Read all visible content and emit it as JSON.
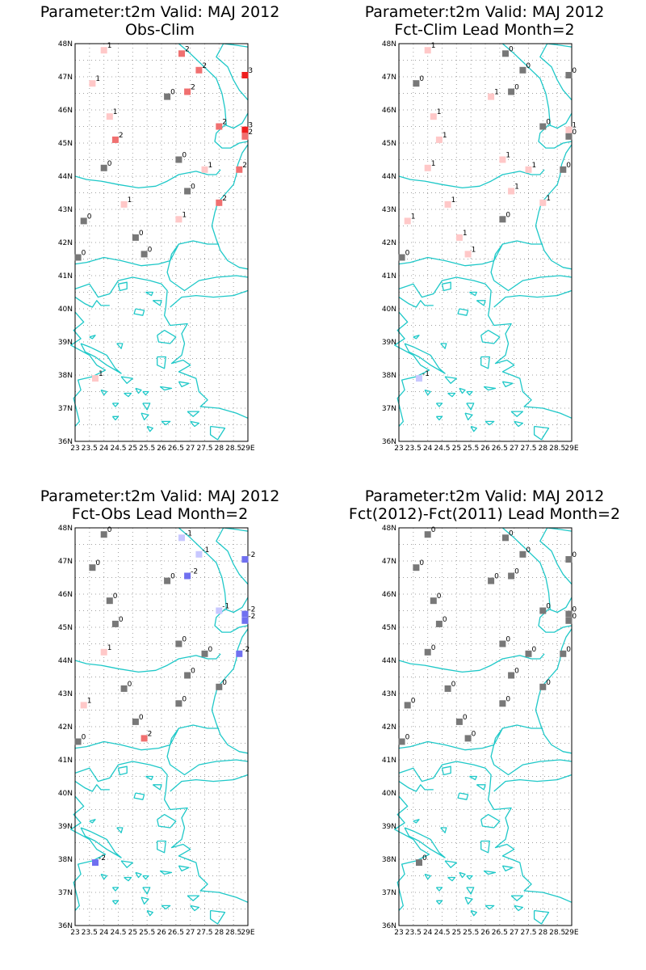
{
  "colors": {
    "coast": "#1ec8c8",
    "grey": "#787878",
    "pos1": "#ffc8c8",
    "pos2": "#f07070",
    "pos3": "#ee1e1e",
    "neg1": "#c8c8ff",
    "neg2": "#7070f0"
  },
  "axes": {
    "lat_labels": [
      "48N",
      "47N",
      "46N",
      "45N",
      "44N",
      "43N",
      "42N",
      "41N",
      "40N",
      "39N",
      "38N",
      "37N",
      "36N"
    ],
    "lon_labels": [
      "23",
      "23.5",
      "24",
      "24.5",
      "25",
      "25.5",
      "26",
      "26.5",
      "27",
      "27.5",
      "28",
      "28.5",
      "29E"
    ]
  },
  "stations": [
    {
      "lon": 24.0,
      "lat": 47.8
    },
    {
      "lon": 26.7,
      "lat": 47.7
    },
    {
      "lon": 27.3,
      "lat": 47.2
    },
    {
      "lon": 28.9,
      "lat": 47.05
    },
    {
      "lon": 23.6,
      "lat": 46.8
    },
    {
      "lon": 26.9,
      "lat": 46.55
    },
    {
      "lon": 26.2,
      "lat": 46.4
    },
    {
      "lon": 24.2,
      "lat": 45.8
    },
    {
      "lon": 28.0,
      "lat": 45.5
    },
    {
      "lon": 28.9,
      "lat": 45.4
    },
    {
      "lon": 28.9,
      "lat": 45.2
    },
    {
      "lon": 24.4,
      "lat": 45.1
    },
    {
      "lon": 26.6,
      "lat": 44.5
    },
    {
      "lon": 28.7,
      "lat": 44.2
    },
    {
      "lon": 24.0,
      "lat": 44.25
    },
    {
      "lon": 27.5,
      "lat": 44.2
    },
    {
      "lon": 26.9,
      "lat": 43.55
    },
    {
      "lon": 24.7,
      "lat": 43.15
    },
    {
      "lon": 28.0,
      "lat": 43.2
    },
    {
      "lon": 23.3,
      "lat": 42.65
    },
    {
      "lon": 26.6,
      "lat": 42.7
    },
    {
      "lon": 25.1,
      "lat": 42.15
    },
    {
      "lon": 25.4,
      "lat": 41.65
    },
    {
      "lon": 23.1,
      "lat": 41.55
    },
    {
      "lon": 23.7,
      "lat": 37.9
    }
  ],
  "panels": [
    {
      "title_line1": "Parameter:t2m Valid: MAJ 2012",
      "title_line2": "Obs-Clim",
      "values": [
        1,
        2,
        2,
        3,
        1,
        2,
        0,
        1,
        2,
        3,
        2,
        2,
        0,
        2,
        0,
        1,
        0,
        1,
        2,
        0,
        1,
        0,
        0,
        0,
        1
      ]
    },
    {
      "title_line1": "Parameter:t2m Valid: MAJ 2012",
      "title_line2": "Fct-Clim Lead Month=2",
      "values": [
        1,
        0,
        0,
        0,
        0,
        0,
        1,
        1,
        0,
        1,
        0,
        1,
        1,
        0,
        1,
        1,
        1,
        1,
        1,
        1,
        0,
        1,
        1,
        0,
        -1
      ]
    },
    {
      "title_line1": "Parameter:t2m Valid: MAJ 2012",
      "title_line2": "Fct-Obs Lead Month=2",
      "values": [
        0,
        -1,
        -1,
        -2,
        0,
        -2,
        0,
        0,
        -1,
        -2,
        -2,
        0,
        0,
        -2,
        1,
        0,
        0,
        0,
        0,
        1,
        0,
        0,
        2,
        0,
        -2
      ]
    },
    {
      "title_line1": "Parameter:t2m Valid: MAJ 2012",
      "title_line2": "Fct(2012)-Fct(2011) Lead Month=2",
      "values": [
        0,
        0,
        0,
        0,
        0,
        0,
        0,
        0,
        0,
        0,
        0,
        0,
        0,
        0,
        0,
        0,
        0,
        0,
        0,
        0,
        0,
        0,
        0,
        0,
        0
      ]
    }
  ]
}
